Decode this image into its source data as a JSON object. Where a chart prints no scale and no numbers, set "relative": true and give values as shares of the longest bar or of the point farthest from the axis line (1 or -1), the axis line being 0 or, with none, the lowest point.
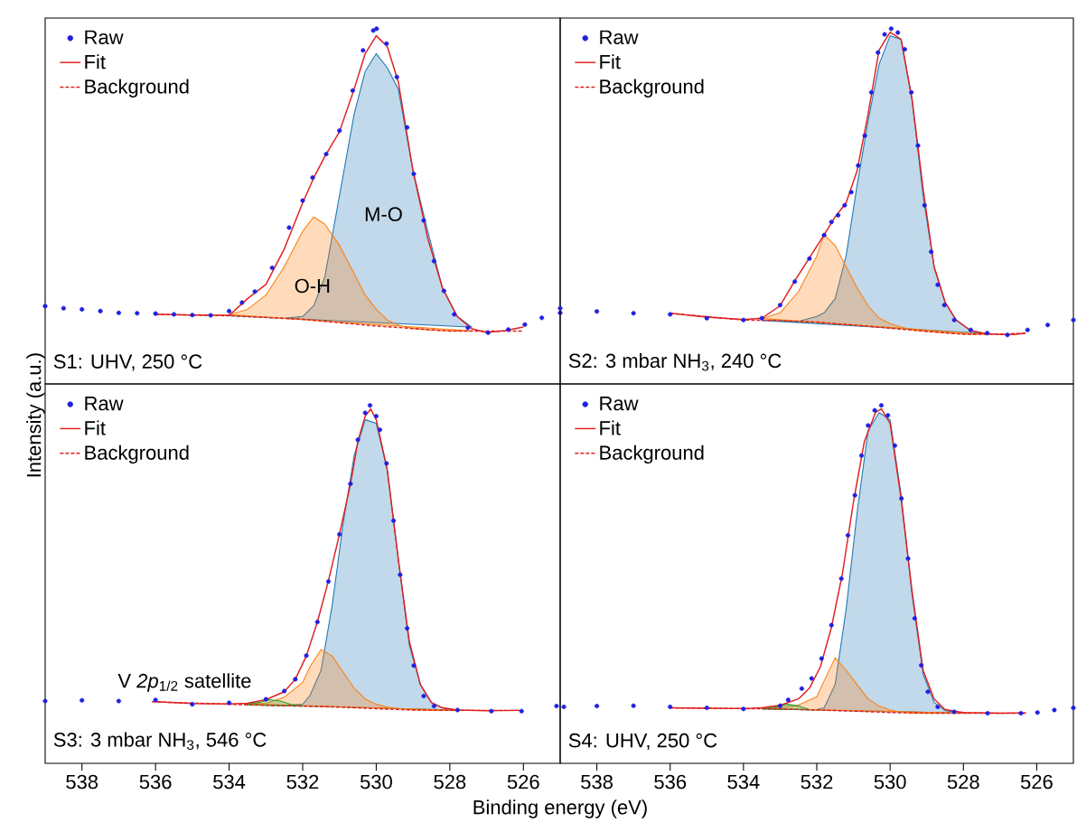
{
  "chart_data": [
    {
      "type": "line",
      "title": "S1: UHV, 250 °C",
      "ylabel": "Intensity (a.u.)",
      "relative": true,
      "xlim": [
        539,
        525
      ],
      "xticks": [
        538,
        536,
        534,
        532,
        530,
        528,
        526
      ],
      "tick_labels": false,
      "legend": "top left",
      "annotations": [
        "M-O",
        "O-H"
      ],
      "series": [
        {
          "name": "Raw",
          "type": "scatter",
          "marker": "circle",
          "color": "#2020e0",
          "x": [
            539,
            538.5,
            538,
            537.5,
            537,
            536.5,
            536,
            535.5,
            535,
            534.5,
            534,
            533.65,
            533.3,
            532.83,
            532.37,
            532,
            531.73,
            531.36,
            531,
            530.64,
            530.36,
            530.08,
            529.99,
            529.72,
            529.44,
            529.16,
            528.98,
            528.71,
            528.43,
            528.16,
            527.88,
            527.51,
            526.96,
            526.41,
            525.96,
            525.5,
            525
          ],
          "values": [
            0.219,
            0.213,
            0.21,
            0.205,
            0.2,
            0.199,
            0.198,
            0.196,
            0.194,
            0.193,
            0.205,
            0.229,
            0.26,
            0.327,
            0.44,
            0.516,
            0.581,
            0.647,
            0.713,
            0.826,
            0.939,
            0.995,
            1,
            0.958,
            0.864,
            0.722,
            0.591,
            0.46,
            0.346,
            0.262,
            0.196,
            0.158,
            0.144,
            0.153,
            0.167,
            0.186,
            0.2
          ]
        },
        {
          "name": "Fit",
          "line_style": "solid",
          "color": "#e02020",
          "x": [
            536,
            535,
            534,
            533.5,
            533,
            532.5,
            532,
            531.7,
            531.4,
            531,
            530.6,
            530.3,
            530,
            529.7,
            529.4,
            529,
            528.6,
            528.2,
            527.8,
            527.4,
            527,
            526.5,
            526
          ],
          "values": [
            0.196,
            0.194,
            0.193,
            0.24,
            0.28,
            0.38,
            0.51,
            0.58,
            0.64,
            0.71,
            0.83,
            0.93,
            0.98,
            0.95,
            0.85,
            0.6,
            0.41,
            0.27,
            0.19,
            0.155,
            0.145,
            0.15,
            0.16
          ]
        },
        {
          "name": "Background",
          "line_style": "dashed",
          "color": "#e02020",
          "x": [
            536,
            534,
            532,
            530,
            528,
            526
          ],
          "values": [
            0.196,
            0.192,
            0.182,
            0.163,
            0.149,
            0.149
          ]
        },
        {
          "type": "area",
          "color": "#ff7f0e",
          "x": [
            534,
            533.5,
            533,
            532.5,
            532,
            531.7,
            531.4,
            531,
            530.6,
            530.3,
            530,
            529.7,
            529.4,
            529,
            528.6,
            528.2,
            527.8,
            527.4
          ],
          "values": [
            0.195,
            0.21,
            0.25,
            0.33,
            0.43,
            0.47,
            0.45,
            0.39,
            0.31,
            0.25,
            0.21,
            0.18,
            0.165,
            0.156,
            0.152,
            0.15,
            0.149,
            0.149
          ]
        },
        {
          "type": "area",
          "color": "#1f77b4",
          "x": [
            534,
            533.5,
            533,
            532.5,
            532,
            531.7,
            531.4,
            531,
            530.6,
            530.3,
            530,
            529.7,
            529.4,
            529,
            528.6,
            528.2,
            527.8,
            527.4
          ],
          "values": [
            0.192,
            0.19,
            0.187,
            0.185,
            0.19,
            0.22,
            0.3,
            0.53,
            0.76,
            0.88,
            0.93,
            0.89,
            0.83,
            0.6,
            0.43,
            0.27,
            0.19,
            0.16
          ]
        }
      ]
    },
    {
      "type": "line",
      "title": "S2: 3 mbar NH$_{3}$, 240 °C",
      "relative": true,
      "xlim": [
        539,
        525
      ],
      "xticks": [
        538,
        536,
        534,
        532,
        530,
        528,
        526
      ],
      "tick_labels": false,
      "legend": "top left",
      "series": [
        {
          "name": "Raw",
          "type": "scatter",
          "marker": "circle",
          "color": "#2020e0",
          "x": [
            539,
            538,
            537,
            536,
            535,
            534,
            533.5,
            533,
            532.6,
            532.2,
            531.8,
            531.6,
            531.42,
            531.24,
            531.06,
            530.87,
            530.69,
            530.51,
            530.33,
            530.15,
            529.97,
            529.79,
            529.6,
            529.42,
            529.24,
            529.06,
            528.88,
            528.7,
            528.52,
            528.25,
            527.8,
            527.35,
            526.8,
            526.25,
            525.7,
            525
          ],
          "values": [
            0.213,
            0.204,
            0.199,
            0.196,
            0.185,
            0.18,
            0.185,
            0.222,
            0.288,
            0.353,
            0.419,
            0.456,
            0.475,
            0.503,
            0.54,
            0.615,
            0.699,
            0.821,
            0.933,
            0.984,
            1,
            0.989,
            0.942,
            0.821,
            0.671,
            0.503,
            0.372,
            0.279,
            0.222,
            0.18,
            0.152,
            0.143,
            0.138,
            0.152,
            0.166,
            0.18
          ]
        },
        {
          "name": "Fit",
          "line_style": "solid",
          "color": "#e02020",
          "x": [
            536,
            535,
            534,
            533.5,
            533,
            532.6,
            532.2,
            531.8,
            531.5,
            531.2,
            530.9,
            530.6,
            530.3,
            530,
            529.7,
            529.4,
            529.1,
            528.8,
            528.5,
            528.2,
            527.8,
            527.4,
            527,
            526.6,
            526.3
          ],
          "values": [
            0.199,
            0.188,
            0.181,
            0.185,
            0.22,
            0.29,
            0.355,
            0.42,
            0.47,
            0.51,
            0.6,
            0.76,
            0.94,
            0.99,
            0.97,
            0.8,
            0.55,
            0.33,
            0.23,
            0.18,
            0.15,
            0.142,
            0.139,
            0.139,
            0.143
          ]
        },
        {
          "name": "Background",
          "line_style": "dashed",
          "color": "#e02020",
          "x": [
            536,
            534,
            533,
            532,
            531,
            530,
            529,
            528,
            527,
            526.3
          ],
          "values": [
            0.199,
            0.18,
            0.178,
            0.174,
            0.166,
            0.157,
            0.148,
            0.14,
            0.14,
            0.143
          ]
        },
        {
          "type": "area",
          "color": "#ff7f0e",
          "x": [
            533.5,
            533,
            532.5,
            532,
            531.8,
            531.5,
            531.2,
            530.9,
            530.6,
            530.3,
            530,
            529.7,
            529.4,
            529.1,
            528.8,
            528.5,
            528.2,
            527.8,
            527.4
          ],
          "values": [
            0.184,
            0.2,
            0.26,
            0.36,
            0.42,
            0.39,
            0.33,
            0.27,
            0.22,
            0.185,
            0.17,
            0.16,
            0.152,
            0.148,
            0.146,
            0.144,
            0.142,
            0.14,
            0.14
          ]
        },
        {
          "type": "area",
          "color": "#1f77b4",
          "x": [
            533.5,
            533,
            532.5,
            532,
            531.8,
            531.5,
            531.2,
            530.9,
            530.6,
            530.3,
            530,
            529.7,
            529.4,
            529.1,
            528.8,
            528.5,
            528.2,
            527.8,
            527.4
          ],
          "values": [
            0.179,
            0.178,
            0.176,
            0.19,
            0.2,
            0.24,
            0.36,
            0.56,
            0.74,
            0.9,
            0.98,
            0.97,
            0.8,
            0.53,
            0.33,
            0.23,
            0.18,
            0.15,
            0.142
          ]
        }
      ]
    },
    {
      "type": "line",
      "title": "S3: 3 mbar NH$_{3}$, 546 °C",
      "xlabel": "Binding energy (eV)",
      "relative": true,
      "xlim": [
        539,
        525
      ],
      "xticks": [
        538,
        536,
        534,
        532,
        530,
        528,
        526
      ],
      "tick_labels": "x",
      "legend": "top left",
      "annotations": [
        "V *2p*$_{1/2}$ satellite"
      ],
      "series": [
        {
          "name": "Raw",
          "type": "scatter",
          "marker": "circle",
          "color": "#2020e0",
          "x": [
            539,
            538,
            537,
            536,
            535,
            534,
            533,
            532.5,
            532.2,
            531.9,
            531.6,
            531.3,
            531,
            530.7,
            530.5,
            530.3,
            530.17,
            530,
            529.9,
            529.72,
            529.53,
            529.35,
            529.16,
            528.98,
            528.71,
            528.43,
            527.79,
            526.87,
            526.05,
            525.1
          ],
          "values": [
            0.174,
            0.176,
            0.174,
            0.177,
            0.165,
            0.169,
            0.179,
            0.202,
            0.235,
            0.301,
            0.395,
            0.508,
            0.64,
            0.781,
            0.904,
            0.979,
            1,
            0.97,
            0.932,
            0.838,
            0.678,
            0.527,
            0.377,
            0.273,
            0.188,
            0.16,
            0.149,
            0.146,
            0.146,
            0.16
          ]
        },
        {
          "name": "Fit",
          "line_style": "solid",
          "color": "#e02020",
          "x": [
            536,
            535,
            534,
            533.5,
            533,
            532.5,
            532.2,
            531.9,
            531.6,
            531.3,
            531,
            530.7,
            530.5,
            530.3,
            530.15,
            530,
            529.7,
            529.4,
            529.1,
            528.8,
            528.5,
            528.2,
            527.8,
            527,
            526.1
          ],
          "values": [
            0.172,
            0.167,
            0.166,
            0.168,
            0.178,
            0.2,
            0.235,
            0.3,
            0.395,
            0.51,
            0.64,
            0.78,
            0.9,
            0.97,
            0.99,
            0.96,
            0.82,
            0.57,
            0.34,
            0.22,
            0.17,
            0.155,
            0.149,
            0.147,
            0.148
          ]
        },
        {
          "name": "Background",
          "line_style": "dashed",
          "color": "#e02020",
          "x": [
            536.1,
            534,
            533,
            532,
            531,
            530,
            529,
            528,
            526.1
          ],
          "values": [
            0.172,
            0.165,
            0.162,
            0.16,
            0.157,
            0.153,
            0.149,
            0.148,
            0.148
          ]
        },
        {
          "type": "area",
          "color": "#2ca02c",
          "x": [
            533.6,
            533.2,
            532.9,
            532.6,
            532.3,
            532
          ],
          "values": [
            0.164,
            0.17,
            0.178,
            0.174,
            0.164,
            0.16
          ]
        },
        {
          "type": "area",
          "color": "#ff7f0e",
          "x": [
            533.5,
            533,
            532.5,
            532,
            531.8,
            531.5,
            531.2,
            530.9,
            530.6,
            530.3,
            530,
            529.7,
            529.4,
            529.1,
            528.8,
            528.5,
            528.2,
            527.8
          ],
          "values": [
            0.166,
            0.168,
            0.185,
            0.226,
            0.27,
            0.318,
            0.3,
            0.255,
            0.21,
            0.18,
            0.165,
            0.157,
            0.153,
            0.15,
            0.149,
            0.148,
            0.148,
            0.148
          ]
        },
        {
          "type": "area",
          "color": "#1f77b4",
          "x": [
            533.5,
            533,
            532.5,
            532,
            531.8,
            531.5,
            531.2,
            530.9,
            530.6,
            530.3,
            530,
            529.7,
            529.4,
            529.1,
            528.8,
            528.5,
            528.2,
            527.8
          ],
          "values": [
            0.164,
            0.162,
            0.162,
            0.165,
            0.19,
            0.26,
            0.44,
            0.67,
            0.86,
            0.96,
            0.95,
            0.82,
            0.57,
            0.33,
            0.22,
            0.17,
            0.155,
            0.149
          ]
        }
      ]
    },
    {
      "type": "line",
      "title": "S4: UHV, 250 °C",
      "relative": true,
      "xlim": [
        539,
        525
      ],
      "xticks": [
        538,
        536,
        534,
        532,
        530,
        528,
        526
      ],
      "tick_labels": "x",
      "legend": "top left",
      "series": [
        {
          "name": "Raw",
          "type": "scatter",
          "marker": "circle",
          "color": "#2020e0",
          "x": [
            538.9,
            538,
            537,
            536,
            535,
            534,
            533,
            532.78,
            532.41,
            532.14,
            531.87,
            531.6,
            531.33,
            531.15,
            530.96,
            530.78,
            530.6,
            530.42,
            530.24,
            530.06,
            529.87,
            529.69,
            529.51,
            529.33,
            529.15,
            528.97,
            528.7,
            528.25,
            527.34,
            526.43,
            525.98,
            525.52,
            525
          ],
          "values": [
            0.158,
            0.16,
            0.161,
            0.158,
            0.155,
            0.152,
            0.161,
            0.177,
            0.209,
            0.237,
            0.293,
            0.386,
            0.516,
            0.637,
            0.749,
            0.86,
            0.944,
            0.986,
            1,
            0.972,
            0.888,
            0.74,
            0.572,
            0.405,
            0.274,
            0.2,
            0.158,
            0.144,
            0.14,
            0.14,
            0.142,
            0.149,
            0.155
          ]
        },
        {
          "name": "Fit",
          "line_style": "solid",
          "color": "#e02020",
          "x": [
            536,
            535,
            534,
            533.5,
            533,
            532.5,
            532.2,
            531.9,
            531.6,
            531.3,
            531,
            530.7,
            530.4,
            530.24,
            530,
            529.7,
            529.4,
            529.1,
            528.8,
            528.5,
            528,
            527,
            526.3
          ],
          "values": [
            0.155,
            0.154,
            0.153,
            0.155,
            0.162,
            0.18,
            0.21,
            0.27,
            0.38,
            0.53,
            0.73,
            0.9,
            0.98,
            0.99,
            0.95,
            0.74,
            0.48,
            0.26,
            0.18,
            0.15,
            0.142,
            0.14,
            0.141
          ]
        },
        {
          "name": "Background",
          "line_style": "dashed",
          "color": "#e02020",
          "x": [
            536,
            534,
            533,
            532,
            531,
            530,
            529,
            528,
            526.3
          ],
          "values": [
            0.155,
            0.153,
            0.152,
            0.149,
            0.146,
            0.142,
            0.14,
            0.14,
            0.14
          ]
        },
        {
          "type": "area",
          "color": "#2ca02c",
          "x": [
            533.5,
            533.1,
            532.8,
            532.5,
            532.2
          ],
          "values": [
            0.152,
            0.158,
            0.165,
            0.16,
            0.15
          ]
        },
        {
          "type": "area",
          "color": "#ff7f0e",
          "x": [
            533.5,
            533,
            532.5,
            532,
            531.8,
            531.5,
            531.2,
            530.9,
            530.6,
            530.3,
            530,
            529.7,
            529.4,
            529.1,
            528.8,
            528.5,
            528.2,
            527.8
          ],
          "values": [
            0.153,
            0.156,
            0.163,
            0.186,
            0.23,
            0.295,
            0.26,
            0.22,
            0.18,
            0.16,
            0.149,
            0.143,
            0.14,
            0.14,
            0.14,
            0.14,
            0.14,
            0.14
          ]
        },
        {
          "type": "area",
          "color": "#1f77b4",
          "x": [
            533.5,
            533,
            532.5,
            532,
            531.8,
            531.5,
            531.2,
            530.9,
            530.6,
            530.3,
            530,
            529.7,
            529.4,
            529.1,
            528.8,
            528.5,
            528.2,
            527.8
          ],
          "values": [
            0.152,
            0.152,
            0.15,
            0.15,
            0.155,
            0.22,
            0.43,
            0.7,
            0.93,
            0.98,
            0.96,
            0.75,
            0.47,
            0.25,
            0.17,
            0.148,
            0.142,
            0.14
          ]
        }
      ]
    }
  ]
}
